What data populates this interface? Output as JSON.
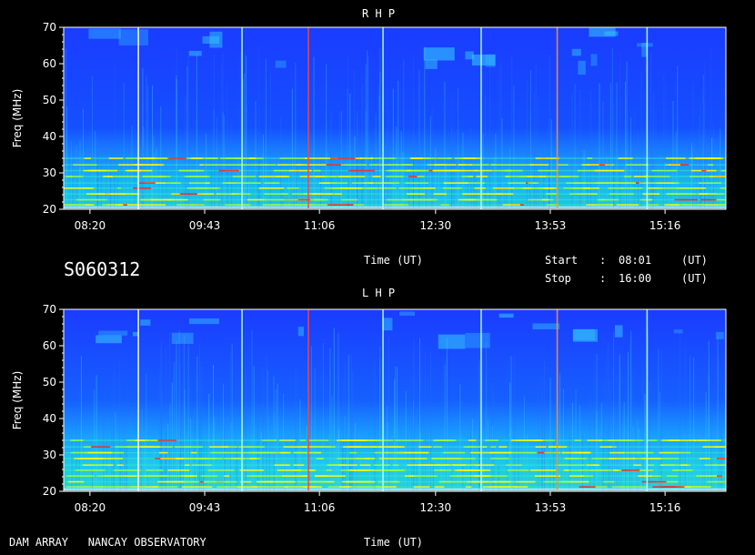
{
  "header": {
    "panel_top_title": "R H P",
    "panel_bottom_title": "L H P",
    "observation_id": "S060312",
    "time_label_mid": "Time (UT)",
    "time_label_bottom": "Time (UT)",
    "start_label": "Start",
    "start_sep": ":",
    "start_value": "08:01",
    "start_unit": "(UT)",
    "stop_label": "Stop",
    "stop_sep": ":",
    "stop_value": "16:00",
    "stop_unit": "(UT)",
    "footer_left": "DAM ARRAY   NANCAY OBSERVATORY"
  },
  "chart_data": [
    {
      "type": "heatmap",
      "title": "R H P",
      "xlabel": "Time (UT)",
      "ylabel": "Freq (MHz)",
      "x_ticks": [
        "08:20",
        "09:43",
        "11:06",
        "12:30",
        "13:53",
        "15:16"
      ],
      "y_ticks": [
        20,
        30,
        40,
        50,
        60,
        70
      ],
      "ylim": [
        20,
        70
      ],
      "xlim": [
        "08:01",
        "16:00"
      ],
      "colors": {
        "low": "#0a1aff",
        "mid": "#00c8ff",
        "high": "#ffff00",
        "peak": "#ff2020"
      }
    },
    {
      "type": "heatmap",
      "title": "L H P",
      "xlabel": "Time (UT)",
      "ylabel": "Freq (MHz)",
      "x_ticks": [
        "08:20",
        "09:43",
        "11:06",
        "12:30",
        "13:53",
        "15:16"
      ],
      "y_ticks": [
        20,
        30,
        40,
        50,
        60,
        70
      ],
      "ylim": [
        20,
        70
      ],
      "xlim": [
        "08:01",
        "16:00"
      ],
      "colors": {
        "low": "#0a1aff",
        "mid": "#00c8ff",
        "high": "#ffff00",
        "peak": "#ff2020"
      }
    }
  ]
}
